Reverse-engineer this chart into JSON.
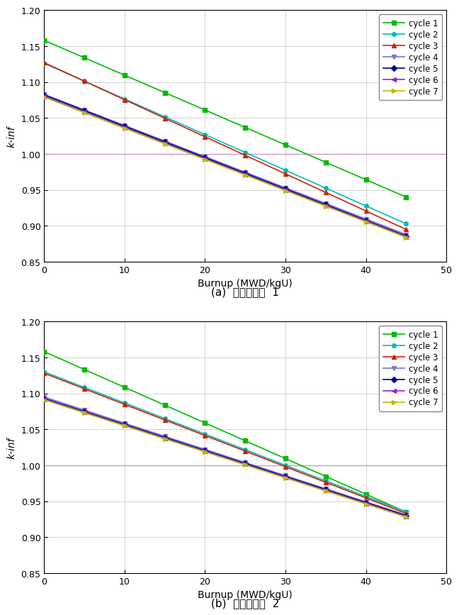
{
  "subplot_a_label": "(a)  재순환옵션  1",
  "subplot_b_label": "(b)  재순환옵션  2",
  "xlabel": "Burnup (MWD/kgU)",
  "ylabel": "k-inf",
  "xlim": [
    0,
    50
  ],
  "ylim": [
    0.85,
    1.2
  ],
  "yticks": [
    0.85,
    0.9,
    0.95,
    1.0,
    1.05,
    1.1,
    1.15,
    1.2
  ],
  "xticks": [
    0,
    10,
    20,
    30,
    40,
    50
  ],
  "hline_y": 1.0,
  "hline_color": "#cc99cc",
  "cycles": [
    "cycle 1",
    "cycle 2",
    "cycle 3",
    "cycle 4",
    "cycle 5",
    "cycle 6",
    "cycle 7"
  ],
  "colors": [
    "#00bb00",
    "#00bbbb",
    "#cc2200",
    "#7777cc",
    "#000088",
    "#9922cc",
    "#bbbb00"
  ],
  "markers": [
    "s",
    "o",
    "^",
    "v",
    "D",
    "<",
    ">"
  ],
  "marker_size": 4,
  "linewidth": 1.2,
  "background_color": "#ffffff",
  "grid_color": "#cccccc",
  "a_starts": [
    1.158,
    1.126,
    1.127,
    1.083,
    1.082,
    1.08,
    1.079
  ],
  "a_ends": [
    0.94,
    0.903,
    0.895,
    0.888,
    0.886,
    0.885,
    0.884
  ],
  "b_starts": [
    1.158,
    1.13,
    1.128,
    1.095,
    1.093,
    1.092,
    1.091
  ],
  "b_ends": [
    0.935,
    0.935,
    0.933,
    0.931,
    0.93,
    0.929,
    0.928
  ]
}
